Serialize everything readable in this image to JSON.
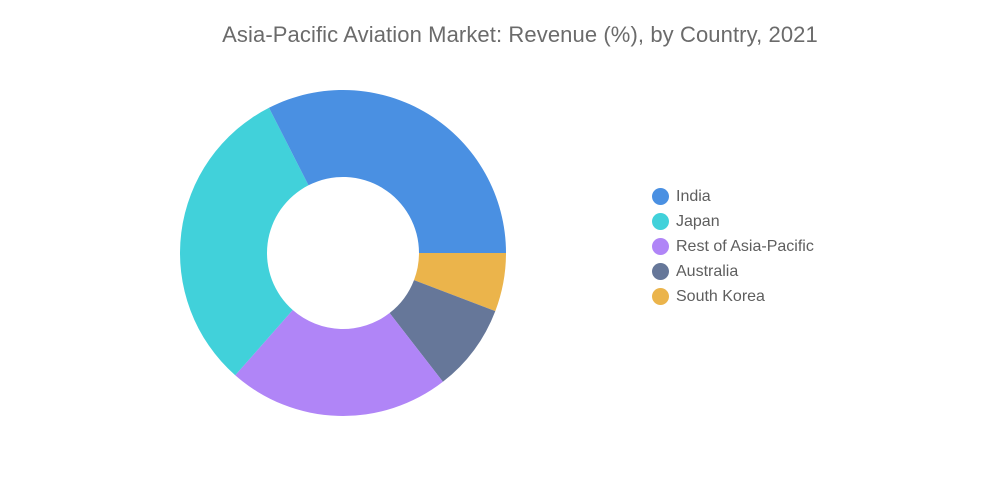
{
  "chart_data": {
    "type": "pie",
    "title": "Asia-Pacific Aviation Market: Revenue (%), by Country, 2021",
    "legend_position": "right",
    "hole": true,
    "series": [
      {
        "name": "India",
        "value": 32.5,
        "color": "#4a90e2"
      },
      {
        "name": "Japan",
        "value": 31.0,
        "color": "#41d1da"
      },
      {
        "name": "Rest of Asia-Pacific",
        "value": 22.0,
        "color": "#b085f7"
      },
      {
        "name": "Australia",
        "value": 8.7,
        "color": "#667799"
      },
      {
        "name": "South Korea",
        "value": 5.8,
        "color": "#ebb44b"
      }
    ],
    "order_clockwise_from_3_oclock": [
      "South Korea",
      "Australia",
      "Rest of Asia-Pacific",
      "Japan",
      "India"
    ]
  }
}
